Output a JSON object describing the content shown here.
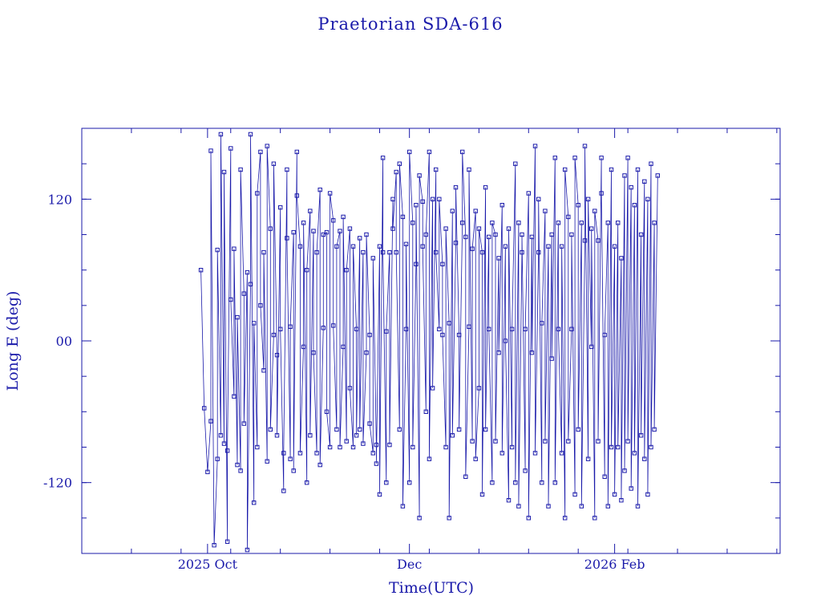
{
  "chart_data": {
    "type": "scatter",
    "title": "Praetorian SDA-616",
    "xlabel": "Time(UTC)",
    "ylabel": "Long E (deg)",
    "xlim": [
      "2025-08-24",
      "2026-03-23"
    ],
    "ylim": [
      -180,
      180
    ],
    "x_ticks": [
      {
        "date": "2025-10-01",
        "label": "2025 Oct"
      },
      {
        "date": "2025-12-01",
        "label": "Dec"
      },
      {
        "date": "2026-02-01",
        "label": "2026 Feb"
      }
    ],
    "y_ticks": [
      {
        "value": 120,
        "label": "120"
      },
      {
        "value": 0,
        "label": "00"
      },
      {
        "value": -120,
        "label": "-120"
      }
    ],
    "grid": false,
    "line_color": "#1a1aaa",
    "marker": "square",
    "series": [
      {
        "points": [
          [
            "2025-09-29",
            60
          ],
          [
            "2025-09-30",
            -57
          ],
          [
            "2025-10-01",
            -111
          ],
          [
            "2025-10-02",
            -68
          ],
          [
            "2025-10-02",
            161
          ],
          [
            "2025-10-03",
            -173
          ],
          [
            "2025-10-04",
            -100
          ],
          [
            "2025-10-04",
            77
          ],
          [
            "2025-10-05",
            -80
          ],
          [
            "2025-10-05",
            175
          ],
          [
            "2025-10-06",
            -87
          ],
          [
            "2025-10-06",
            143
          ],
          [
            "2025-10-07",
            -170
          ],
          [
            "2025-10-07",
            -93
          ],
          [
            "2025-10-08",
            163
          ],
          [
            "2025-10-08",
            35
          ],
          [
            "2025-10-09",
            -47
          ],
          [
            "2025-10-09",
            78
          ],
          [
            "2025-10-10",
            -105
          ],
          [
            "2025-10-10",
            20
          ],
          [
            "2025-10-11",
            -110
          ],
          [
            "2025-10-11",
            145
          ],
          [
            "2025-10-12",
            40
          ],
          [
            "2025-10-12",
            -70
          ],
          [
            "2025-10-13",
            58
          ],
          [
            "2025-10-13",
            -177
          ],
          [
            "2025-10-14",
            48
          ],
          [
            "2025-10-14",
            175
          ],
          [
            "2025-10-15",
            -137
          ],
          [
            "2025-10-15",
            15
          ],
          [
            "2025-10-16",
            -90
          ],
          [
            "2025-10-16",
            125
          ],
          [
            "2025-10-17",
            160
          ],
          [
            "2025-10-17",
            30
          ],
          [
            "2025-10-18",
            -25
          ],
          [
            "2025-10-18",
            75
          ],
          [
            "2025-10-19",
            -102
          ],
          [
            "2025-10-19",
            165
          ],
          [
            "2025-10-20",
            95
          ],
          [
            "2025-10-20",
            -75
          ],
          [
            "2025-10-21",
            5
          ],
          [
            "2025-10-21",
            150
          ],
          [
            "2025-10-22",
            -12
          ],
          [
            "2025-10-22",
            -80
          ],
          [
            "2025-10-23",
            113
          ],
          [
            "2025-10-23",
            10
          ],
          [
            "2025-10-24",
            -127
          ],
          [
            "2025-10-24",
            -95
          ],
          [
            "2025-10-25",
            145
          ],
          [
            "2025-10-25",
            87
          ],
          [
            "2025-10-26",
            -100
          ],
          [
            "2025-10-26",
            12
          ],
          [
            "2025-10-27",
            92
          ],
          [
            "2025-10-27",
            -110
          ],
          [
            "2025-10-28",
            160
          ],
          [
            "2025-10-28",
            123
          ],
          [
            "2025-10-29",
            80
          ],
          [
            "2025-10-29",
            -95
          ],
          [
            "2025-10-30",
            -5
          ],
          [
            "2025-10-30",
            100
          ],
          [
            "2025-10-31",
            -120
          ],
          [
            "2025-10-31",
            60
          ],
          [
            "2025-11-01",
            110
          ],
          [
            "2025-11-01",
            -80
          ],
          [
            "2025-11-02",
            93
          ],
          [
            "2025-11-02",
            -10
          ],
          [
            "2025-11-03",
            -95
          ],
          [
            "2025-11-03",
            75
          ],
          [
            "2025-11-04",
            128
          ],
          [
            "2025-11-04",
            -105
          ],
          [
            "2025-11-05",
            11
          ],
          [
            "2025-11-05",
            90
          ],
          [
            "2025-11-06",
            92
          ],
          [
            "2025-11-06",
            -60
          ],
          [
            "2025-11-07",
            -90
          ],
          [
            "2025-11-07",
            125
          ],
          [
            "2025-11-08",
            102
          ],
          [
            "2025-11-08",
            13
          ],
          [
            "2025-11-09",
            -75
          ],
          [
            "2025-11-09",
            80
          ],
          [
            "2025-11-10",
            93
          ],
          [
            "2025-11-10",
            -90
          ],
          [
            "2025-11-11",
            -5
          ],
          [
            "2025-11-11",
            105
          ],
          [
            "2025-11-12",
            -85
          ],
          [
            "2025-11-12",
            60
          ],
          [
            "2025-11-13",
            95
          ],
          [
            "2025-11-13",
            -40
          ],
          [
            "2025-11-14",
            -90
          ],
          [
            "2025-11-14",
            80
          ],
          [
            "2025-11-15",
            10
          ],
          [
            "2025-11-15",
            -80
          ],
          [
            "2025-11-16",
            87
          ],
          [
            "2025-11-16",
            -75
          ],
          [
            "2025-11-17",
            75
          ],
          [
            "2025-11-17",
            -87
          ],
          [
            "2025-11-18",
            -10
          ],
          [
            "2025-11-18",
            90
          ],
          [
            "2025-11-19",
            5
          ],
          [
            "2025-11-19",
            -70
          ],
          [
            "2025-11-20",
            -95
          ],
          [
            "2025-11-20",
            70
          ],
          [
            "2025-11-21",
            -88
          ],
          [
            "2025-11-21",
            -104
          ],
          [
            "2025-11-22",
            80
          ],
          [
            "2025-11-22",
            -130
          ],
          [
            "2025-11-23",
            155
          ],
          [
            "2025-11-23",
            75
          ],
          [
            "2025-11-24",
            -120
          ],
          [
            "2025-11-24",
            8
          ],
          [
            "2025-11-25",
            75
          ],
          [
            "2025-11-25",
            -88
          ],
          [
            "2025-11-26",
            120
          ],
          [
            "2025-11-26",
            95
          ],
          [
            "2025-11-27",
            143
          ],
          [
            "2025-11-27",
            75
          ],
          [
            "2025-11-28",
            -75
          ],
          [
            "2025-11-28",
            150
          ],
          [
            "2025-11-29",
            105
          ],
          [
            "2025-11-29",
            -140
          ],
          [
            "2025-11-30",
            10
          ],
          [
            "2025-11-30",
            82
          ],
          [
            "2025-12-01",
            -120
          ],
          [
            "2025-12-01",
            160
          ],
          [
            "2025-12-02",
            100
          ],
          [
            "2025-12-02",
            -90
          ],
          [
            "2025-12-03",
            65
          ],
          [
            "2025-12-03",
            115
          ],
          [
            "2025-12-04",
            -150
          ],
          [
            "2025-12-04",
            140
          ],
          [
            "2025-12-05",
            118
          ],
          [
            "2025-12-05",
            80
          ],
          [
            "2025-12-06",
            -60
          ],
          [
            "2025-12-06",
            90
          ],
          [
            "2025-12-07",
            160
          ],
          [
            "2025-12-07",
            -100
          ],
          [
            "2025-12-08",
            120
          ],
          [
            "2025-12-08",
            -40
          ],
          [
            "2025-12-09",
            145
          ],
          [
            "2025-12-09",
            75
          ],
          [
            "2025-12-10",
            10
          ],
          [
            "2025-12-10",
            120
          ],
          [
            "2025-12-11",
            65
          ],
          [
            "2025-12-11",
            5
          ],
          [
            "2025-12-12",
            -90
          ],
          [
            "2025-12-12",
            95
          ],
          [
            "2025-12-13",
            15
          ],
          [
            "2025-12-13",
            -150
          ],
          [
            "2025-12-14",
            110
          ],
          [
            "2025-12-14",
            -80
          ],
          [
            "2025-12-15",
            83
          ],
          [
            "2025-12-15",
            130
          ],
          [
            "2025-12-16",
            5
          ],
          [
            "2025-12-16",
            -75
          ],
          [
            "2025-12-17",
            100
          ],
          [
            "2025-12-17",
            160
          ],
          [
            "2025-12-18",
            88
          ],
          [
            "2025-12-18",
            -115
          ],
          [
            "2025-12-19",
            12
          ],
          [
            "2025-12-19",
            145
          ],
          [
            "2025-12-20",
            -85
          ],
          [
            "2025-12-20",
            78
          ],
          [
            "2025-12-21",
            110
          ],
          [
            "2025-12-21",
            -100
          ],
          [
            "2025-12-22",
            -40
          ],
          [
            "2025-12-22",
            95
          ],
          [
            "2025-12-23",
            75
          ],
          [
            "2025-12-23",
            -130
          ],
          [
            "2025-12-24",
            130
          ],
          [
            "2025-12-24",
            -75
          ],
          [
            "2025-12-25",
            88
          ],
          [
            "2025-12-25",
            10
          ],
          [
            "2025-12-26",
            -120
          ],
          [
            "2025-12-26",
            100
          ],
          [
            "2025-12-27",
            90
          ],
          [
            "2025-12-27",
            -85
          ],
          [
            "2025-12-28",
            70
          ],
          [
            "2025-12-28",
            -10
          ],
          [
            "2025-12-29",
            115
          ],
          [
            "2025-12-29",
            -95
          ],
          [
            "2025-12-30",
            80
          ],
          [
            "2025-12-30",
            0
          ],
          [
            "2025-12-31",
            -135
          ],
          [
            "2025-12-31",
            95
          ],
          [
            "2026-01-01",
            -90
          ],
          [
            "2026-01-01",
            10
          ],
          [
            "2026-01-02",
            150
          ],
          [
            "2026-01-02",
            -120
          ],
          [
            "2026-01-03",
            100
          ],
          [
            "2026-01-03",
            -140
          ],
          [
            "2026-01-04",
            75
          ],
          [
            "2026-01-04",
            90
          ],
          [
            "2026-01-05",
            -110
          ],
          [
            "2026-01-05",
            10
          ],
          [
            "2026-01-06",
            125
          ],
          [
            "2026-01-06",
            -150
          ],
          [
            "2026-01-07",
            88
          ],
          [
            "2026-01-07",
            -10
          ],
          [
            "2026-01-08",
            165
          ],
          [
            "2026-01-08",
            -95
          ],
          [
            "2026-01-09",
            75
          ],
          [
            "2026-01-09",
            120
          ],
          [
            "2026-01-10",
            -120
          ],
          [
            "2026-01-10",
            15
          ],
          [
            "2026-01-11",
            110
          ],
          [
            "2026-01-11",
            -85
          ],
          [
            "2026-01-12",
            80
          ],
          [
            "2026-01-12",
            -140
          ],
          [
            "2026-01-13",
            90
          ],
          [
            "2026-01-13",
            -15
          ],
          [
            "2026-01-14",
            155
          ],
          [
            "2026-01-14",
            -120
          ],
          [
            "2026-01-15",
            100
          ],
          [
            "2026-01-15",
            10
          ],
          [
            "2026-01-16",
            -95
          ],
          [
            "2026-01-16",
            80
          ],
          [
            "2026-01-17",
            -150
          ],
          [
            "2026-01-17",
            145
          ],
          [
            "2026-01-18",
            105
          ],
          [
            "2026-01-18",
            -85
          ],
          [
            "2026-01-19",
            10
          ],
          [
            "2026-01-19",
            90
          ],
          [
            "2026-01-20",
            -130
          ],
          [
            "2026-01-20",
            155
          ],
          [
            "2026-01-21",
            115
          ],
          [
            "2026-01-21",
            -75
          ],
          [
            "2026-01-22",
            100
          ],
          [
            "2026-01-22",
            -140
          ],
          [
            "2026-01-23",
            85
          ],
          [
            "2026-01-23",
            165
          ],
          [
            "2026-01-24",
            -100
          ],
          [
            "2026-01-24",
            120
          ],
          [
            "2026-01-25",
            -5
          ],
          [
            "2026-01-25",
            95
          ],
          [
            "2026-01-26",
            -150
          ],
          [
            "2026-01-26",
            110
          ],
          [
            "2026-01-27",
            85
          ],
          [
            "2026-01-27",
            -85
          ],
          [
            "2026-01-28",
            155
          ],
          [
            "2026-01-28",
            125
          ],
          [
            "2026-01-29",
            -115
          ],
          [
            "2026-01-29",
            5
          ],
          [
            "2026-01-30",
            100
          ],
          [
            "2026-01-30",
            -140
          ],
          [
            "2026-01-31",
            145
          ],
          [
            "2026-01-31",
            -90
          ],
          [
            "2026-02-01",
            80
          ],
          [
            "2026-02-01",
            -130
          ],
          [
            "2026-02-02",
            100
          ],
          [
            "2026-02-02",
            -90
          ],
          [
            "2026-02-03",
            70
          ],
          [
            "2026-02-03",
            -135
          ],
          [
            "2026-02-04",
            140
          ],
          [
            "2026-02-04",
            -110
          ],
          [
            "2026-02-05",
            155
          ],
          [
            "2026-02-05",
            -85
          ],
          [
            "2026-02-06",
            130
          ],
          [
            "2026-02-06",
            -125
          ],
          [
            "2026-02-07",
            115
          ],
          [
            "2026-02-07",
            -95
          ],
          [
            "2026-02-08",
            145
          ],
          [
            "2026-02-08",
            -140
          ],
          [
            "2026-02-09",
            90
          ],
          [
            "2026-02-09",
            -80
          ],
          [
            "2026-02-10",
            135
          ],
          [
            "2026-02-10",
            -100
          ],
          [
            "2026-02-11",
            120
          ],
          [
            "2026-02-11",
            -130
          ],
          [
            "2026-02-12",
            150
          ],
          [
            "2026-02-12",
            -90
          ],
          [
            "2026-02-13",
            100
          ],
          [
            "2026-02-13",
            -75
          ],
          [
            "2026-02-14",
            140
          ]
        ]
      }
    ]
  }
}
